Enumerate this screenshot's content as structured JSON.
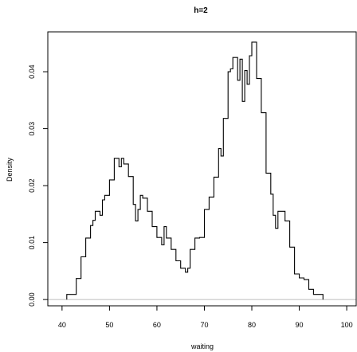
{
  "chart_data": {
    "type": "line",
    "title": "h=2",
    "xlabel": "waiting",
    "ylabel": "Density",
    "xlim": [
      37,
      102
    ],
    "ylim": [
      -0.0011,
      0.047
    ],
    "x_ticks": [
      40,
      50,
      60,
      70,
      80,
      90,
      100
    ],
    "x_tick_labels": [
      "40",
      "50",
      "60",
      "70",
      "80",
      "90",
      "100"
    ],
    "y_ticks": [
      0.0,
      0.01,
      0.02,
      0.03,
      0.04
    ],
    "y_tick_labels": [
      "0.00",
      "0.01",
      "0.02",
      "0.03",
      "0.04"
    ],
    "grid": false,
    "baseline": 0,
    "series": [
      {
        "values": [
          [
            41,
            0.0
          ],
          [
            41,
            0.0009
          ],
          [
            43,
            0.0009
          ],
          [
            43,
            0.0037
          ],
          [
            44,
            0.0037
          ],
          [
            44,
            0.0075
          ],
          [
            45,
            0.0075
          ],
          [
            45,
            0.0108
          ],
          [
            46,
            0.0108
          ],
          [
            46,
            0.013
          ],
          [
            46.5,
            0.013
          ],
          [
            46.5,
            0.0139
          ],
          [
            47,
            0.0139
          ],
          [
            47,
            0.0155
          ],
          [
            48,
            0.0155
          ],
          [
            48,
            0.0148
          ],
          [
            48.5,
            0.0148
          ],
          [
            48.5,
            0.0175
          ],
          [
            49,
            0.0175
          ],
          [
            49,
            0.0183
          ],
          [
            50,
            0.0183
          ],
          [
            50,
            0.021
          ],
          [
            51,
            0.021
          ],
          [
            51,
            0.0248
          ],
          [
            52,
            0.0248
          ],
          [
            52,
            0.0233
          ],
          [
            52.5,
            0.0233
          ],
          [
            52.5,
            0.0248
          ],
          [
            53,
            0.0248
          ],
          [
            53,
            0.0238
          ],
          [
            54,
            0.0238
          ],
          [
            54,
            0.0216
          ],
          [
            55,
            0.0216
          ],
          [
            55,
            0.0167
          ],
          [
            55.5,
            0.0167
          ],
          [
            55.5,
            0.0138
          ],
          [
            56,
            0.0138
          ],
          [
            56,
            0.0158
          ],
          [
            56.5,
            0.0158
          ],
          [
            56.5,
            0.0183
          ],
          [
            57,
            0.0183
          ],
          [
            57,
            0.0178
          ],
          [
            58,
            0.0178
          ],
          [
            58,
            0.0155
          ],
          [
            59,
            0.0155
          ],
          [
            59,
            0.0128
          ],
          [
            60,
            0.0128
          ],
          [
            60,
            0.0109
          ],
          [
            61,
            0.0109
          ],
          [
            61,
            0.0096
          ],
          [
            61.5,
            0.0096
          ],
          [
            61.5,
            0.0128
          ],
          [
            62,
            0.0128
          ],
          [
            62,
            0.0108
          ],
          [
            63,
            0.0108
          ],
          [
            63,
            0.0088
          ],
          [
            64,
            0.0088
          ],
          [
            64,
            0.0068
          ],
          [
            65,
            0.0068
          ],
          [
            65,
            0.0055
          ],
          [
            66,
            0.0055
          ],
          [
            66,
            0.0048
          ],
          [
            66.5,
            0.0048
          ],
          [
            66.5,
            0.0055
          ],
          [
            67,
            0.0055
          ],
          [
            67,
            0.0088
          ],
          [
            68,
            0.0088
          ],
          [
            68,
            0.0108
          ],
          [
            69,
            0.0108
          ],
          [
            69,
            0.0109
          ],
          [
            70,
            0.0109
          ],
          [
            70,
            0.0158
          ],
          [
            71,
            0.0158
          ],
          [
            71,
            0.018
          ],
          [
            72,
            0.018
          ],
          [
            72,
            0.0215
          ],
          [
            73,
            0.0215
          ],
          [
            73,
            0.0265
          ],
          [
            73.5,
            0.0265
          ],
          [
            73.5,
            0.0252
          ],
          [
            74,
            0.0252
          ],
          [
            74,
            0.0318
          ],
          [
            75,
            0.0318
          ],
          [
            75,
            0.04
          ],
          [
            75.5,
            0.04
          ],
          [
            75.5,
            0.0405
          ],
          [
            76,
            0.0405
          ],
          [
            76,
            0.0425
          ],
          [
            77,
            0.0425
          ],
          [
            77,
            0.0385
          ],
          [
            77.5,
            0.0385
          ],
          [
            77.5,
            0.0422
          ],
          [
            78,
            0.0422
          ],
          [
            78,
            0.0348
          ],
          [
            78.5,
            0.0348
          ],
          [
            78.5,
            0.0402
          ],
          [
            79,
            0.0402
          ],
          [
            79,
            0.0378
          ],
          [
            79.5,
            0.0378
          ],
          [
            79.5,
            0.0428
          ],
          [
            80,
            0.0428
          ],
          [
            80,
            0.0452
          ],
          [
            81,
            0.0452
          ],
          [
            81,
            0.0388
          ],
          [
            82,
            0.0388
          ],
          [
            82,
            0.0328
          ],
          [
            83,
            0.0328
          ],
          [
            83,
            0.0222
          ],
          [
            84,
            0.0222
          ],
          [
            84,
            0.0185
          ],
          [
            84.5,
            0.0185
          ],
          [
            84.5,
            0.0148
          ],
          [
            85,
            0.0148
          ],
          [
            85,
            0.0125
          ],
          [
            85.5,
            0.0125
          ],
          [
            85.5,
            0.0155
          ],
          [
            86,
            0.0155
          ],
          [
            86,
            0.0155
          ],
          [
            87,
            0.0155
          ],
          [
            87,
            0.0138
          ],
          [
            88,
            0.0138
          ],
          [
            88,
            0.0092
          ],
          [
            89,
            0.0092
          ],
          [
            89,
            0.0045
          ],
          [
            90,
            0.0045
          ],
          [
            90,
            0.0038
          ],
          [
            91,
            0.0038
          ],
          [
            91,
            0.0035
          ],
          [
            92,
            0.0035
          ],
          [
            92,
            0.0018
          ],
          [
            93,
            0.0018
          ],
          [
            93,
            0.0009
          ],
          [
            95,
            0.0009
          ],
          [
            95,
            0.0
          ]
        ]
      }
    ]
  }
}
